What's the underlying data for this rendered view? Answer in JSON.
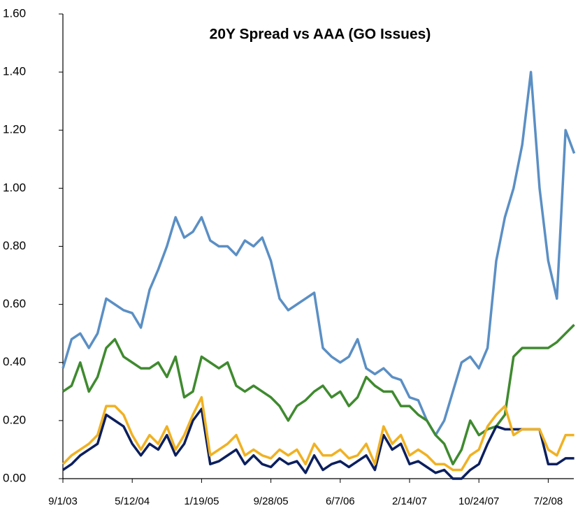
{
  "chart_data": {
    "type": "line",
    "title": "20Y Spread vs AAA (GO Issues)",
    "categories": [
      "9/1/03",
      null,
      null,
      null,
      null,
      null,
      null,
      null,
      "5/12/04",
      null,
      null,
      null,
      null,
      null,
      null,
      null,
      "1/19/05",
      null,
      null,
      null,
      null,
      null,
      null,
      null,
      "9/28/05",
      null,
      null,
      null,
      null,
      null,
      null,
      null,
      "6/7/06",
      null,
      null,
      null,
      null,
      null,
      null,
      null,
      "2/14/07",
      null,
      null,
      null,
      null,
      null,
      null,
      null,
      "10/24/07",
      null,
      null,
      null,
      null,
      null,
      null,
      null,
      "7/2/08",
      null,
      null,
      null
    ],
    "series": [
      {
        "color": "#5b8fc4",
        "values": [
          0.38,
          0.48,
          0.5,
          0.45,
          0.5,
          0.62,
          0.6,
          0.58,
          0.57,
          0.52,
          0.65,
          0.72,
          0.8,
          0.9,
          0.83,
          0.85,
          0.9,
          0.82,
          0.8,
          0.8,
          0.77,
          0.82,
          0.8,
          0.83,
          0.75,
          0.62,
          0.58,
          0.6,
          0.62,
          0.64,
          0.45,
          0.42,
          0.4,
          0.42,
          0.48,
          0.38,
          0.36,
          0.38,
          0.35,
          0.34,
          0.28,
          0.27,
          0.2,
          0.15,
          0.2,
          0.3,
          0.4,
          0.42,
          0.38,
          0.45,
          0.75,
          0.9,
          1.0,
          1.15,
          1.4,
          1.0,
          0.75,
          0.62,
          1.2,
          1.12
        ]
      },
      {
        "color": "#3f8a2f",
        "values": [
          0.3,
          0.32,
          0.4,
          0.3,
          0.35,
          0.45,
          0.48,
          0.42,
          0.4,
          0.38,
          0.38,
          0.4,
          0.35,
          0.42,
          0.28,
          0.3,
          0.42,
          0.4,
          0.38,
          0.4,
          0.32,
          0.3,
          0.32,
          0.3,
          0.28,
          0.25,
          0.2,
          0.25,
          0.27,
          0.3,
          0.32,
          0.28,
          0.3,
          0.25,
          0.28,
          0.35,
          0.32,
          0.3,
          0.3,
          0.25,
          0.25,
          0.22,
          0.2,
          0.15,
          0.12,
          0.05,
          0.1,
          0.2,
          0.15,
          0.17,
          0.18,
          0.22,
          0.42,
          0.45,
          0.45,
          0.45,
          0.45,
          0.47,
          0.5,
          0.53
        ]
      },
      {
        "color": "#0b1f5e",
        "values": [
          0.03,
          0.05,
          0.08,
          0.1,
          0.12,
          0.22,
          0.2,
          0.18,
          0.12,
          0.08,
          0.12,
          0.1,
          0.15,
          0.08,
          0.12,
          0.2,
          0.24,
          0.05,
          0.06,
          0.08,
          0.1,
          0.05,
          0.08,
          0.05,
          0.04,
          0.07,
          0.05,
          0.06,
          0.02,
          0.08,
          0.03,
          0.05,
          0.06,
          0.04,
          0.06,
          0.08,
          0.03,
          0.15,
          0.1,
          0.12,
          0.05,
          0.06,
          0.04,
          0.02,
          0.03,
          0.0,
          0.0,
          0.03,
          0.05,
          0.12,
          0.18,
          0.17,
          0.17,
          0.17,
          0.17,
          0.17,
          0.05,
          0.05,
          0.07,
          0.07
        ]
      },
      {
        "color": "#f0b122",
        "values": [
          0.05,
          0.08,
          0.1,
          0.12,
          0.15,
          0.25,
          0.25,
          0.22,
          0.15,
          0.1,
          0.15,
          0.12,
          0.18,
          0.1,
          0.15,
          0.22,
          0.28,
          0.08,
          0.1,
          0.12,
          0.15,
          0.08,
          0.1,
          0.08,
          0.07,
          0.1,
          0.08,
          0.1,
          0.05,
          0.12,
          0.08,
          0.08,
          0.1,
          0.07,
          0.08,
          0.12,
          0.05,
          0.18,
          0.12,
          0.15,
          0.08,
          0.1,
          0.08,
          0.05,
          0.05,
          0.03,
          0.03,
          0.08,
          0.1,
          0.18,
          0.22,
          0.25,
          0.15,
          0.17,
          0.17,
          0.17,
          0.1,
          0.08,
          0.15,
          0.15
        ]
      }
    ],
    "ylim": [
      0,
      1.6
    ],
    "yticks": [
      {
        "value": 0,
        "label": "0.00"
      },
      {
        "value": 0.2,
        "label": "0.20"
      },
      {
        "value": 0.4,
        "label": "0.40"
      },
      {
        "value": 0.6,
        "label": "0.60"
      },
      {
        "value": 0.8,
        "label": "0.80"
      },
      {
        "value": 1.0,
        "label": "1.00"
      },
      {
        "value": 1.2,
        "label": "1.20"
      },
      {
        "value": 1.4,
        "label": "1.40"
      },
      {
        "value": 1.6,
        "label": "1.60"
      }
    ],
    "grid": false
  }
}
